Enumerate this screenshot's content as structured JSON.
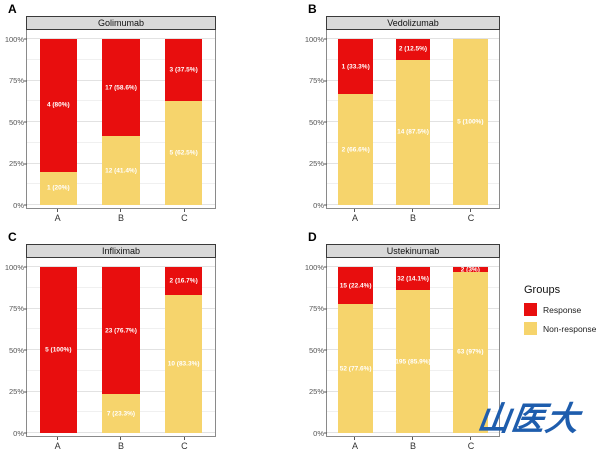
{
  "figure": {
    "watermark": "山医大"
  },
  "colors": {
    "response": "#e80e0e",
    "non_response": "#f6d46c",
    "strip_bg": "#d9d9d9",
    "strip_border": "#3a3a3a",
    "plot_border": "#8a8a8a",
    "grid_major": "#e2e2e2",
    "grid_minor": "#f0f0f0",
    "axis_text": "#555555",
    "watermark": "#1e5dad"
  },
  "legend": {
    "title": "Groups",
    "items": [
      {
        "label": "Response",
        "key": "response"
      },
      {
        "label": "Non-response",
        "key": "non_response"
      }
    ]
  },
  "axes": {
    "y_tick_values": [
      0,
      25,
      50,
      75,
      100
    ],
    "y_tick_labels": [
      "0%",
      "25%",
      "50%",
      "75%",
      "100%"
    ],
    "y_minor_values": [
      12.5,
      37.5,
      62.5,
      87.5
    ],
    "x_categories": [
      "A",
      "B",
      "C"
    ]
  },
  "chart_data": [
    {
      "type": "bar",
      "stacked": true,
      "panel_letter": "A",
      "title": "Golimumab",
      "categories": [
        "A",
        "B",
        "C"
      ],
      "ylim": [
        0,
        100
      ],
      "series": [
        {
          "name": "Response",
          "values": [
            80,
            58.6,
            37.5
          ],
          "labels": [
            "4 (80%)",
            "17 (58.6%)",
            "3 (37.5%)"
          ]
        },
        {
          "name": "Non-response",
          "values": [
            20,
            41.4,
            62.5
          ],
          "labels": [
            "1 (20%)",
            "12 (41.4%)",
            "5 (62.5%)"
          ]
        }
      ]
    },
    {
      "type": "bar",
      "stacked": true,
      "panel_letter": "B",
      "title": "Vedolizumab",
      "categories": [
        "A",
        "B",
        "C"
      ],
      "ylim": [
        0,
        100
      ],
      "series": [
        {
          "name": "Response",
          "values": [
            33.3,
            12.5,
            0
          ],
          "labels": [
            "1 (33.3%)",
            "2 (12.5%)",
            ""
          ]
        },
        {
          "name": "Non-response",
          "values": [
            66.6,
            87.5,
            100
          ],
          "labels": [
            "2 (66.6%)",
            "14 (87.5%)",
            "5 (100%)"
          ]
        }
      ]
    },
    {
      "type": "bar",
      "stacked": true,
      "panel_letter": "C",
      "title": "Infliximab",
      "categories": [
        "A",
        "B",
        "C"
      ],
      "ylim": [
        0,
        100
      ],
      "series": [
        {
          "name": "Response",
          "values": [
            100,
            76.7,
            16.7
          ],
          "labels": [
            "5 (100%)",
            "23 (76.7%)",
            "2 (16.7%)"
          ]
        },
        {
          "name": "Non-response",
          "values": [
            0,
            23.3,
            83.3
          ],
          "labels": [
            "",
            "7 (23.3%)",
            "10 (83.3%)"
          ]
        }
      ]
    },
    {
      "type": "bar",
      "stacked": true,
      "panel_letter": "D",
      "title": "Ustekinumab",
      "categories": [
        "A",
        "B",
        "C"
      ],
      "ylim": [
        0,
        100
      ],
      "series": [
        {
          "name": "Response",
          "values": [
            22.4,
            14.1,
            3
          ],
          "labels": [
            "15 (22.4%)",
            "32 (14.1%)",
            "2 (3%)"
          ]
        },
        {
          "name": "Non-response",
          "values": [
            77.6,
            85.9,
            97
          ],
          "labels": [
            "52 (77.6%)",
            "195 (85.9%)",
            "63 (97%)"
          ]
        }
      ]
    }
  ]
}
